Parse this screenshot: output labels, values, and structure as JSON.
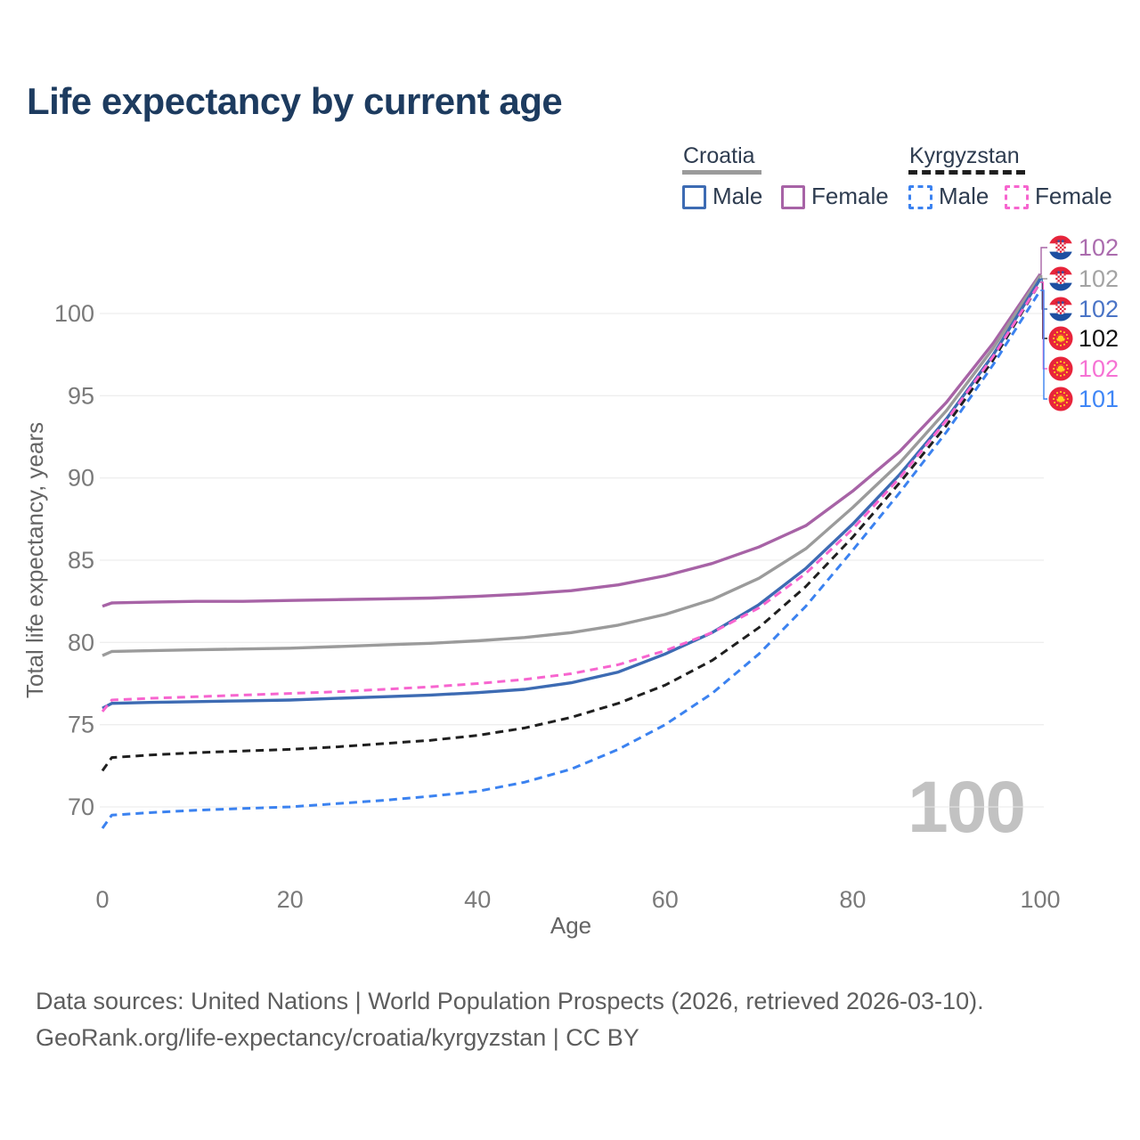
{
  "title": "Life expectancy by current age",
  "legend": {
    "groups": [
      {
        "country": "Croatia",
        "items": [
          {
            "label": "Male",
            "series": "croatia-male"
          },
          {
            "label": "Female",
            "series": "croatia-female"
          }
        ]
      },
      {
        "country": "Kyrgyzstan",
        "items": [
          {
            "label": "Male",
            "series": "kyrgyzstan-male"
          },
          {
            "label": "Female",
            "series": "kyrgyzstan-female"
          }
        ]
      }
    ]
  },
  "watermark": "100",
  "footer": {
    "line1": "Data sources: United Nations | World Population Prospects (2026, retrieved 2026-03-10).",
    "line2": "GeoRank.org/life-expectancy/croatia/kyrgyzstan | CC BY"
  },
  "chart_data": {
    "type": "line",
    "title": "Life expectancy by current age",
    "xlabel": "Age",
    "ylabel": "Total life expectancy, years",
    "x_range": [
      0,
      100
    ],
    "y_range": [
      70,
      100
    ],
    "x_ticks": [
      0,
      20,
      40,
      60,
      80,
      100
    ],
    "y_ticks": [
      70,
      75,
      80,
      85,
      90,
      95,
      100
    ],
    "grid": "horizontal",
    "legend_position": "top-right",
    "x": [
      0,
      1,
      5,
      10,
      15,
      20,
      25,
      30,
      35,
      40,
      45,
      50,
      55,
      60,
      65,
      70,
      75,
      80,
      85,
      90,
      95,
      100
    ],
    "series": [
      {
        "id": "croatia-female",
        "name": "Croatia Female",
        "country": "Croatia",
        "sex": "Female",
        "color": "#a763a6",
        "label_color": "#ab6cae",
        "dashed": false,
        "flag": "croatia",
        "end_label": "102",
        "values": [
          82.2,
          82.4,
          82.45,
          82.5,
          82.5,
          82.55,
          82.6,
          82.65,
          82.7,
          82.8,
          82.95,
          83.15,
          83.5,
          84.05,
          84.8,
          85.8,
          87.1,
          89.2,
          91.6,
          94.6,
          98.2,
          102.4
        ]
      },
      {
        "id": "croatia-total",
        "name": "Croatia Both sexes",
        "country": "Croatia",
        "sex": "Both",
        "color": "#9b9b9b",
        "label_color": "#a3a3a3",
        "dashed": false,
        "flag": "croatia",
        "end_label": "102",
        "values": [
          79.2,
          79.45,
          79.5,
          79.55,
          79.6,
          79.65,
          79.75,
          79.85,
          79.95,
          80.1,
          80.3,
          80.6,
          81.05,
          81.7,
          82.6,
          83.9,
          85.7,
          88.2,
          90.9,
          94.1,
          97.9,
          102.3
        ]
      },
      {
        "id": "croatia-male",
        "name": "Croatia Male",
        "country": "Croatia",
        "sex": "Male",
        "color": "#3d6bb3",
        "label_color": "#4a74c6",
        "dashed": false,
        "flag": "croatia",
        "end_label": "102",
        "values": [
          76.0,
          76.3,
          76.35,
          76.4,
          76.45,
          76.5,
          76.6,
          76.7,
          76.8,
          76.95,
          77.15,
          77.55,
          78.2,
          79.3,
          80.6,
          82.3,
          84.5,
          87.2,
          90.2,
          93.6,
          97.5,
          102.1
        ]
      },
      {
        "id": "kyrgyzstan-total",
        "name": "Kyrgyzstan Both sexes",
        "country": "Kyrgyzstan",
        "sex": "Both",
        "color": "#1f1f1f",
        "label_color": "#111111",
        "dashed": true,
        "flag": "kyrgyzstan",
        "end_label": "102",
        "values": [
          72.2,
          73.0,
          73.15,
          73.3,
          73.4,
          73.5,
          73.65,
          73.85,
          74.05,
          74.35,
          74.8,
          75.45,
          76.3,
          77.4,
          78.9,
          80.9,
          83.4,
          86.4,
          89.7,
          93.2,
          97.2,
          101.9
        ]
      },
      {
        "id": "kyrgyzstan-female",
        "name": "Kyrgyzstan Female",
        "country": "Kyrgyzstan",
        "sex": "Female",
        "color": "#f765cf",
        "label_color": "#f672d4",
        "dashed": true,
        "flag": "kyrgyzstan",
        "end_label": "102",
        "values": [
          75.8,
          76.5,
          76.6,
          76.7,
          76.8,
          76.9,
          77.0,
          77.15,
          77.3,
          77.5,
          77.75,
          78.1,
          78.65,
          79.5,
          80.6,
          82.1,
          84.2,
          86.9,
          90.0,
          93.5,
          97.4,
          101.9
        ]
      },
      {
        "id": "kyrgyzstan-male",
        "name": "Kyrgyzstan Male",
        "country": "Kyrgyzstan",
        "sex": "Male",
        "color": "#3b82f0",
        "label_color": "#3f86f6",
        "dashed": true,
        "flag": "kyrgyzstan",
        "end_label": "101",
        "values": [
          68.7,
          69.5,
          69.65,
          69.8,
          69.9,
          70.0,
          70.2,
          70.4,
          70.65,
          70.95,
          71.5,
          72.3,
          73.5,
          75.0,
          76.9,
          79.3,
          82.2,
          85.6,
          89.1,
          92.8,
          96.9,
          101.4
        ]
      }
    ]
  }
}
